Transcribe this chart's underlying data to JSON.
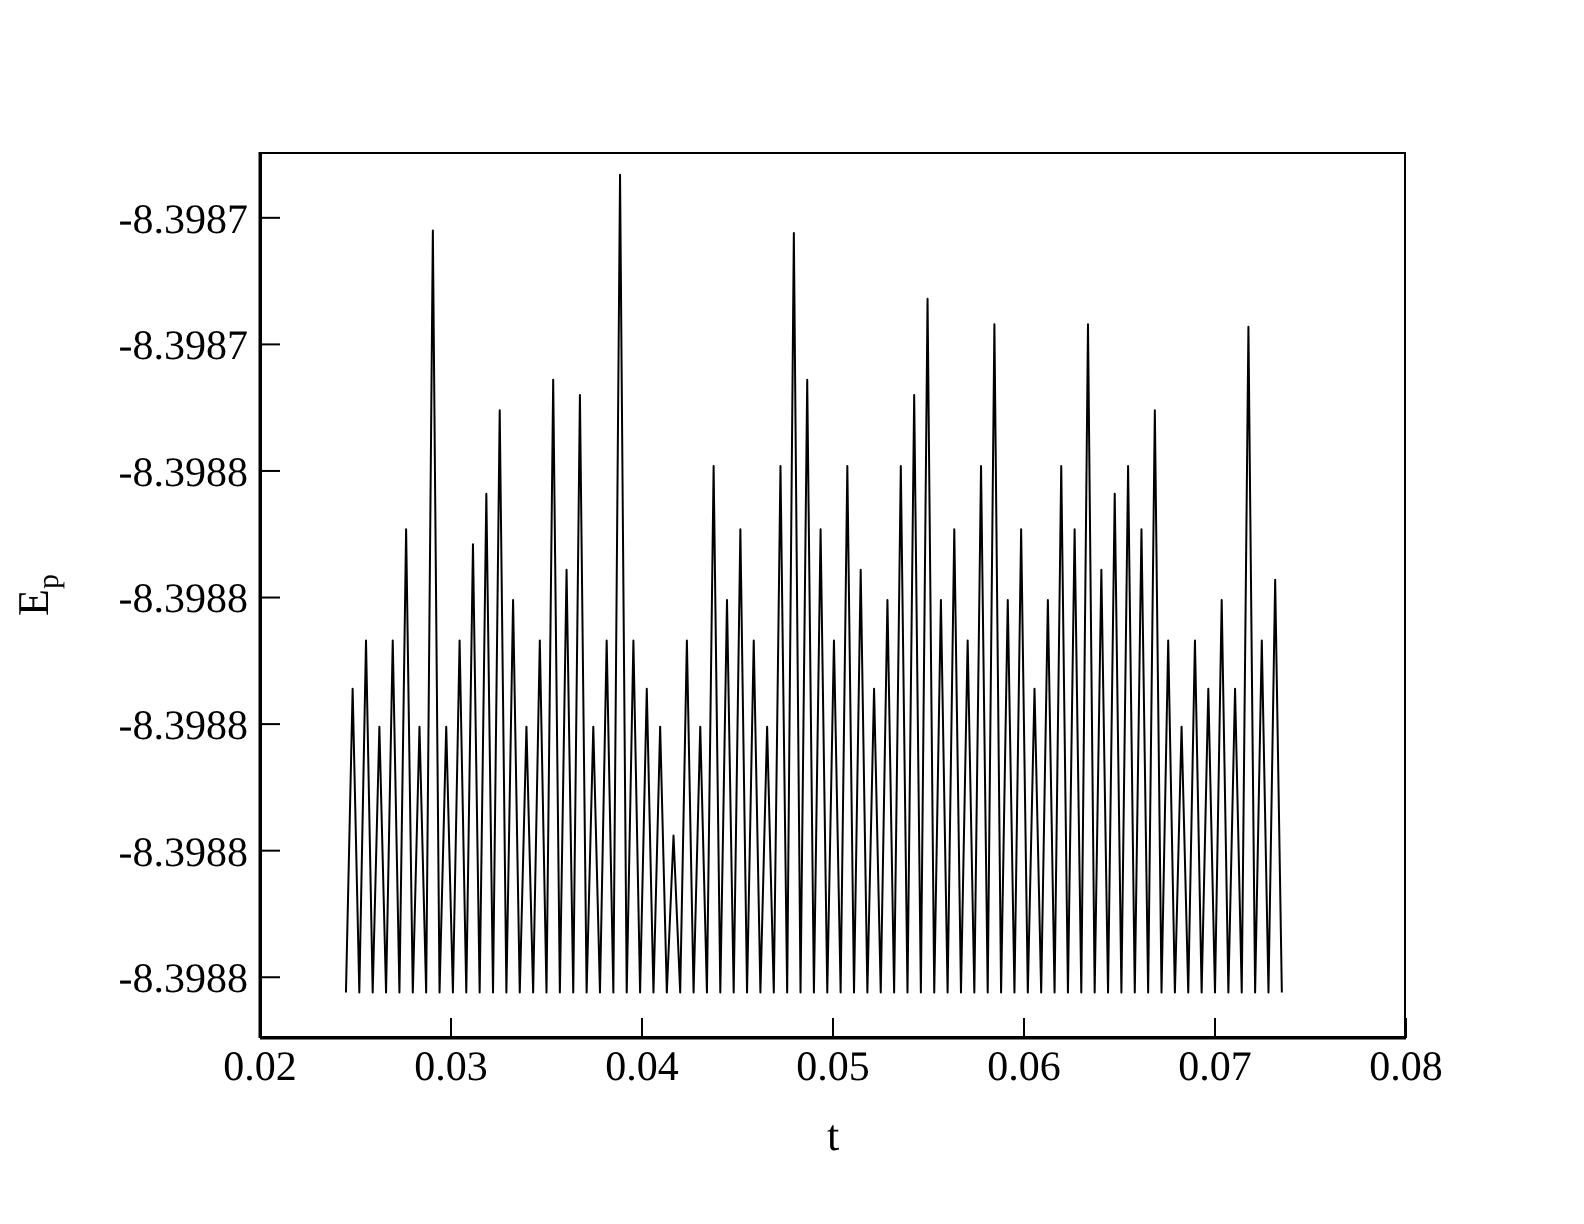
{
  "chart_data": {
    "type": "line",
    "xlabel": "t",
    "ylabel": "E$_{p}$",
    "color": "#000000",
    "grid": false,
    "legend": false,
    "xlim": [
      0.02,
      0.08
    ],
    "xticks": [
      0.02,
      0.03,
      0.04,
      0.05,
      0.06,
      0.07,
      0.08
    ],
    "ylim": [
      -8.3987724,
      -8.3987374
    ],
    "yticks": [
      {
        "value": -8.39874,
        "label": "-8.3987"
      },
      {
        "value": -8.398745,
        "label": "-8.3987"
      },
      {
        "value": -8.39875,
        "label": "-8.3988"
      },
      {
        "value": -8.398755,
        "label": "-8.3988"
      },
      {
        "value": -8.39876,
        "label": "-8.3988"
      },
      {
        "value": -8.398765,
        "label": "-8.3988"
      },
      {
        "value": -8.39877,
        "label": "-8.3988"
      }
    ],
    "x": [
      0.0245,
      0.02485,
      0.0252,
      0.02555,
      0.0259,
      0.02625,
      0.0266,
      0.02695,
      0.0273,
      0.02765,
      0.028,
      0.02835,
      0.0287,
      0.02905,
      0.0294,
      0.02975,
      0.0301,
      0.03045,
      0.0308,
      0.03115,
      0.0315,
      0.03185,
      0.0322,
      0.03255,
      0.0329,
      0.03325,
      0.0336,
      0.03395,
      0.0343,
      0.03465,
      0.035,
      0.03535,
      0.0357,
      0.03605,
      0.0364,
      0.03675,
      0.0371,
      0.03745,
      0.0378,
      0.03815,
      0.0385,
      0.03885,
      0.0392,
      0.03955,
      0.0399,
      0.04025,
      0.0406,
      0.04095,
      0.0413,
      0.04165,
      0.042,
      0.04235,
      0.0427,
      0.04305,
      0.0434,
      0.04375,
      0.0441,
      0.04445,
      0.0448,
      0.04515,
      0.0455,
      0.04585,
      0.0462,
      0.04655,
      0.0469,
      0.04725,
      0.0476,
      0.04795,
      0.0483,
      0.04865,
      0.049,
      0.04935,
      0.0497,
      0.05005,
      0.0504,
      0.05075,
      0.0511,
      0.05145,
      0.0518,
      0.05215,
      0.0525,
      0.05285,
      0.0532,
      0.05355,
      0.0539,
      0.05425,
      0.0546,
      0.05495,
      0.0553,
      0.05565,
      0.056,
      0.05635,
      0.0567,
      0.05705,
      0.0574,
      0.05775,
      0.0581,
      0.05845,
      0.0588,
      0.05915,
      0.0595,
      0.05985,
      0.0602,
      0.06055,
      0.0609,
      0.06125,
      0.0616,
      0.06195,
      0.0623,
      0.06265,
      0.063,
      0.06335,
      0.0637,
      0.06405,
      0.0644,
      0.06475,
      0.0651,
      0.06545,
      0.0658,
      0.06615,
      0.0665,
      0.06685,
      0.0672,
      0.06755,
      0.0679,
      0.06825,
      0.0686,
      0.06895,
      0.0693,
      0.06965,
      0.07,
      0.07035,
      0.0707,
      0.07105,
      0.0714,
      0.07175,
      0.0721,
      0.07245,
      0.0728,
      0.07315,
      0.0735
    ],
    "values": [
      -8.3987706,
      -8.3987586,
      -8.3987706,
      -8.3987567,
      -8.3987706,
      -8.3987601,
      -8.3987706,
      -8.3987567,
      -8.3987706,
      -8.3987523,
      -8.3987706,
      -8.3987601,
      -8.3987706,
      -8.3987405,
      -8.3987706,
      -8.3987601,
      -8.3987706,
      -8.3987567,
      -8.3987706,
      -8.3987529,
      -8.3987706,
      -8.3987509,
      -8.3987706,
      -8.3987476,
      -8.3987706,
      -8.3987551,
      -8.3987706,
      -8.3987601,
      -8.3987706,
      -8.3987567,
      -8.3987706,
      -8.3987464,
      -8.3987706,
      -8.3987539,
      -8.3987706,
      -8.398747,
      -8.3987706,
      -8.3987601,
      -8.3987706,
      -8.3987567,
      -8.3987706,
      -8.3987383,
      -8.3987706,
      -8.3987567,
      -8.3987706,
      -8.3987586,
      -8.3987706,
      -8.3987601,
      -8.3987706,
      -8.3987644,
      -8.3987706,
      -8.3987567,
      -8.3987706,
      -8.3987601,
      -8.3987706,
      -8.3987498,
      -8.3987706,
      -8.3987551,
      -8.3987706,
      -8.3987523,
      -8.3987706,
      -8.3987567,
      -8.3987706,
      -8.3987601,
      -8.3987706,
      -8.3987498,
      -8.3987706,
      -8.3987406,
      -8.3987706,
      -8.3987464,
      -8.3987706,
      -8.3987523,
      -8.3987706,
      -8.3987567,
      -8.3987706,
      -8.3987498,
      -8.3987706,
      -8.3987539,
      -8.3987706,
      -8.3987586,
      -8.3987706,
      -8.3987551,
      -8.3987706,
      -8.3987498,
      -8.3987706,
      -8.398747,
      -8.3987706,
      -8.3987432,
      -8.3987706,
      -8.3987551,
      -8.3987706,
      -8.3987523,
      -8.3987706,
      -8.3987567,
      -8.3987706,
      -8.3987498,
      -8.3987706,
      -8.3987442,
      -8.3987706,
      -8.3987551,
      -8.3987706,
      -8.3987523,
      -8.3987706,
      -8.3987586,
      -8.3987706,
      -8.3987551,
      -8.3987706,
      -8.3987498,
      -8.3987706,
      -8.3987523,
      -8.3987706,
      -8.3987442,
      -8.3987706,
      -8.3987539,
      -8.3987706,
      -8.3987509,
      -8.3987706,
      -8.3987498,
      -8.3987706,
      -8.3987523,
      -8.3987706,
      -8.3987476,
      -8.3987706,
      -8.3987567,
      -8.3987706,
      -8.3987601,
      -8.3987706,
      -8.3987567,
      -8.3987706,
      -8.3987586,
      -8.3987706,
      -8.3987551,
      -8.3987706,
      -8.3987586,
      -8.3987706,
      -8.3987443,
      -8.3987706,
      -8.3987567,
      -8.3987706,
      -8.3987543,
      -8.3987706
    ]
  }
}
